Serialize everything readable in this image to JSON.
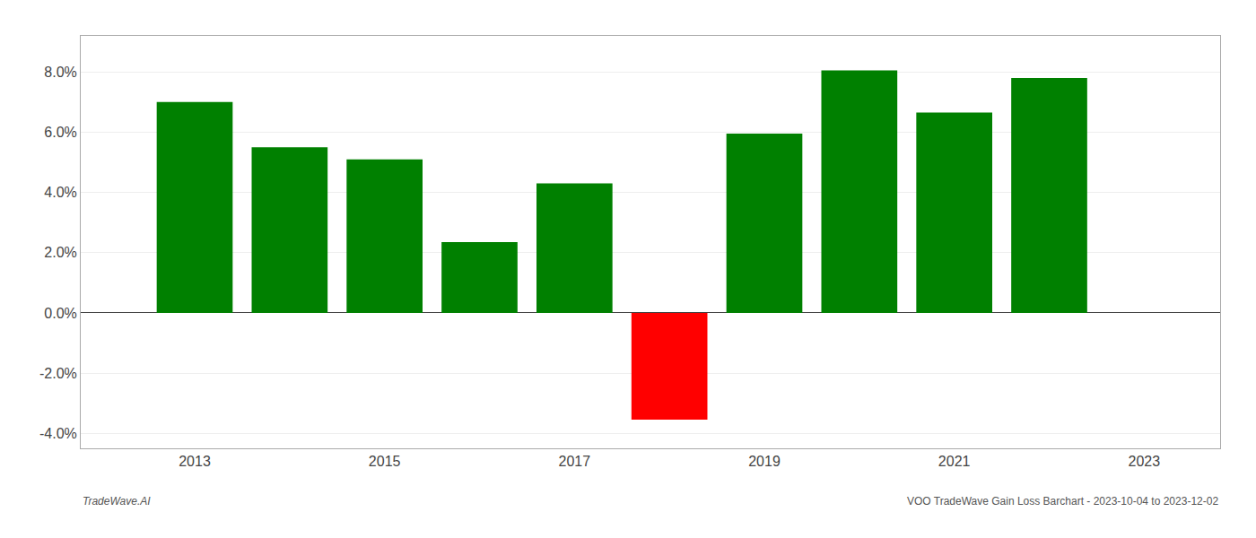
{
  "chart_data": {
    "type": "bar",
    "x": [
      2013,
      2014,
      2015,
      2016,
      2017,
      2018,
      2019,
      2020,
      2021,
      2022
    ],
    "values": [
      0.07,
      0.055,
      0.051,
      0.0235,
      0.043,
      -0.0355,
      0.0595,
      0.0805,
      0.0665,
      0.078
    ],
    "colors": [
      "#008000",
      "#008000",
      "#008000",
      "#008000",
      "#008000",
      "#ff0000",
      "#008000",
      "#008000",
      "#008000",
      "#008000"
    ],
    "xlim": [
      2011.8,
      2023.8
    ],
    "xticks": [
      2013,
      2015,
      2017,
      2019,
      2021,
      2023
    ],
    "ylim": [
      -0.045,
      0.092
    ],
    "yticks": [
      {
        "value": -0.04,
        "label": "-4.0%"
      },
      {
        "value": -0.02,
        "label": "-2.0%"
      },
      {
        "value": 0.0,
        "label": "0.0%"
      },
      {
        "value": 0.02,
        "label": "2.0%"
      },
      {
        "value": 0.04,
        "label": "4.0%"
      },
      {
        "value": 0.06,
        "label": "6.0%"
      },
      {
        "value": 0.08,
        "label": "8.0%"
      }
    ],
    "grid": true,
    "annotations": [
      "TradeWave.AI",
      "VOO TradeWave Gain Loss Barchart - 2023-10-04 to 2023-12-02"
    ]
  }
}
